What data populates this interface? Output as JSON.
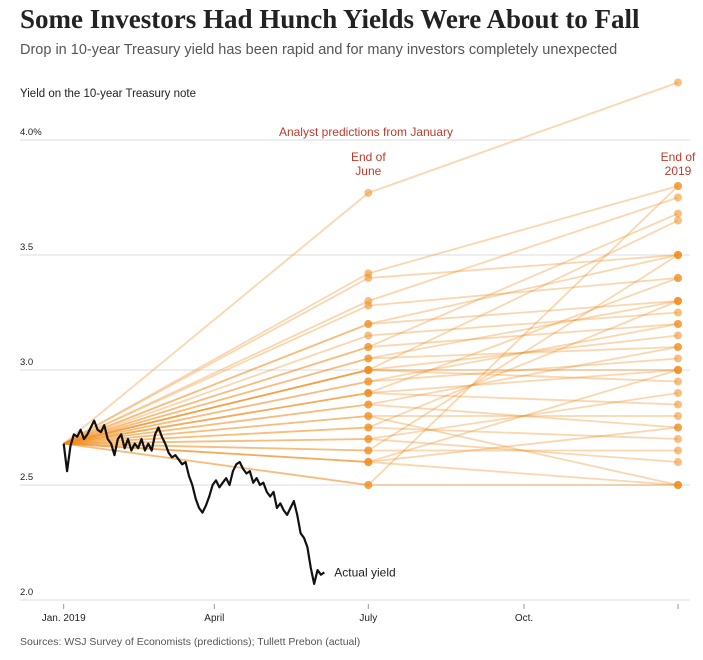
{
  "chart_data": {
    "type": "line",
    "title": "Some Investors Had Hunch Yields Were About to Fall",
    "subtitle": "Drop in 10-year Treasury yield has been rapid and for many investors completely unexpected",
    "y_axis_label": "Yield on the 10-year Treasury note",
    "source": "Sources: WSJ Survey of Economists (predictions); Tullett Prebon (actual)",
    "predictions_label": "Analyst predictions from January",
    "period_labels": [
      [
        "End of",
        "June"
      ],
      [
        "End of",
        "2019"
      ]
    ],
    "xlim": [
      0,
      364
    ],
    "xticks": [
      {
        "value": 1,
        "label": "Jan. 2019"
      },
      {
        "value": 90,
        "label": "April"
      },
      {
        "value": 181,
        "label": "July"
      },
      {
        "value": 273,
        "label": "Oct."
      },
      {
        "value": 364,
        "label": null
      }
    ],
    "ylim": [
      2,
      4.3
    ],
    "yticks": [
      {
        "value": 2,
        "label": "2.0"
      },
      2.5,
      {
        "value": 3,
        "label": "3.0"
      },
      3.5,
      {
        "value": 4,
        "label": "4.0%"
      }
    ],
    "grid": true,
    "actual": {
      "name": "Actual yield",
      "color": "#111111",
      "x": [
        1,
        3,
        5,
        7,
        9,
        11,
        13,
        15,
        17,
        19,
        21,
        23,
        25,
        27,
        29,
        31,
        33,
        35,
        37,
        39,
        41,
        43,
        45,
        47,
        49,
        51,
        53,
        55,
        57,
        59,
        61,
        63,
        65,
        67,
        69,
        71,
        73,
        75,
        77,
        79,
        81,
        83,
        85,
        87,
        89,
        91,
        93,
        95,
        97,
        99,
        101,
        103,
        105,
        107,
        109,
        111,
        113,
        115,
        117,
        119,
        121,
        123,
        125,
        127,
        129,
        131,
        133,
        135,
        137,
        139,
        141,
        143,
        145,
        147,
        149,
        151,
        153,
        155
      ],
      "values": [
        2.68,
        2.56,
        2.67,
        2.72,
        2.71,
        2.74,
        2.7,
        2.72,
        2.75,
        2.78,
        2.74,
        2.73,
        2.76,
        2.7,
        2.68,
        2.63,
        2.7,
        2.72,
        2.66,
        2.7,
        2.65,
        2.68,
        2.66,
        2.7,
        2.65,
        2.68,
        2.65,
        2.72,
        2.75,
        2.71,
        2.68,
        2.64,
        2.62,
        2.63,
        2.61,
        2.59,
        2.6,
        2.54,
        2.5,
        2.44,
        2.4,
        2.38,
        2.41,
        2.45,
        2.5,
        2.52,
        2.49,
        2.51,
        2.53,
        2.5,
        2.56,
        2.59,
        2.6,
        2.57,
        2.55,
        2.56,
        2.51,
        2.53,
        2.5,
        2.51,
        2.47,
        2.45,
        2.47,
        2.4,
        2.42,
        2.39,
        2.37,
        2.4,
        2.43,
        2.37,
        2.29,
        2.27,
        2.23,
        2.14,
        2.07,
        2.13,
        2.11,
        2.12
      ]
    },
    "prediction_color": "#f08c1e",
    "prediction_x": [
      1,
      181,
      364
    ],
    "predictions": [
      {
        "values": [
          2.68,
          3.77,
          4.25
        ]
      },
      {
        "values": [
          2.68,
          3.42,
          3.8
        ]
      },
      {
        "values": [
          2.68,
          3.4,
          3.5
        ]
      },
      {
        "values": [
          2.68,
          3.3,
          3.75
        ]
      },
      {
        "values": [
          2.68,
          3.28,
          3.4
        ]
      },
      {
        "values": [
          2.68,
          3.2,
          3.5
        ]
      },
      {
        "values": [
          2.68,
          3.2,
          3.3
        ]
      },
      {
        "values": [
          2.68,
          3.15,
          3.25
        ]
      },
      {
        "values": [
          2.68,
          3.1,
          3.68
        ]
      },
      {
        "values": [
          2.68,
          3.1,
          3.2
        ]
      },
      {
        "values": [
          2.68,
          3.05,
          3.3
        ]
      },
      {
        "values": [
          2.68,
          3.05,
          3.1
        ]
      },
      {
        "values": [
          2.68,
          3.0,
          3.0
        ]
      },
      {
        "values": [
          2.68,
          3.0,
          3.15
        ]
      },
      {
        "values": [
          2.68,
          3.0,
          3.65
        ]
      },
      {
        "values": [
          2.68,
          3.0,
          2.95
        ]
      },
      {
        "values": [
          2.68,
          2.95,
          3.2
        ]
      },
      {
        "values": [
          2.68,
          2.95,
          3.05
        ]
      },
      {
        "values": [
          2.68,
          2.9,
          3.0
        ]
      },
      {
        "values": [
          2.68,
          2.9,
          2.85
        ]
      },
      {
        "values": [
          2.68,
          2.9,
          3.4
        ]
      },
      {
        "values": [
          2.68,
          2.85,
          2.75
        ]
      },
      {
        "values": [
          2.68,
          2.85,
          3.1
        ]
      },
      {
        "values": [
          2.68,
          2.8,
          2.8
        ]
      },
      {
        "values": [
          2.68,
          2.8,
          2.5
        ]
      },
      {
        "values": [
          2.68,
          2.75,
          2.7
        ]
      },
      {
        "values": [
          2.68,
          2.75,
          3.3
        ]
      },
      {
        "values": [
          2.68,
          2.7,
          2.9
        ]
      },
      {
        "values": [
          2.68,
          2.7,
          2.6
        ]
      },
      {
        "values": [
          2.68,
          2.65,
          2.65
        ]
      },
      {
        "values": [
          2.68,
          2.65,
          3.5
        ]
      },
      {
        "values": [
          2.68,
          2.6,
          2.5
        ]
      },
      {
        "values": [
          2.68,
          2.6,
          2.75
        ]
      },
      {
        "values": [
          2.68,
          2.6,
          3.0
        ]
      },
      {
        "values": [
          2.68,
          2.5,
          2.5
        ]
      },
      {
        "values": [
          2.68,
          2.5,
          3.8
        ]
      }
    ]
  }
}
